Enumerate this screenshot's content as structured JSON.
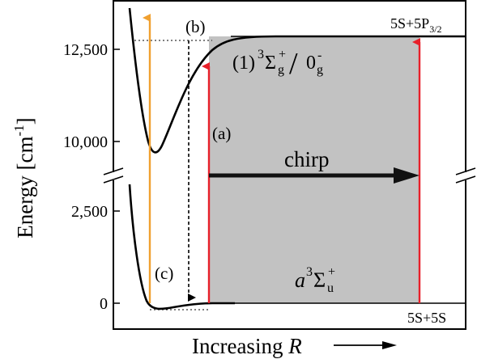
{
  "diagram": {
    "ylabel_main": "Energy [cm",
    "ylabel_sup": "-1",
    "ylabel_end": "]",
    "xlabel_text": "Increasing ",
    "xlabel_var": "R",
    "ticks": [
      "12,500",
      "10,000",
      "2,500",
      "0"
    ],
    "labels": {
      "a": "(a)",
      "b": "(b)",
      "c": "(c)",
      "chirp": "chirp"
    },
    "asymptote_top": {
      "base": "5S+5P",
      "sub": "3/2"
    },
    "asymptote_bottom": "5S+5S",
    "upper_state": {
      "prefix": "(1)",
      "sup": "3",
      "sigma": "Σ",
      "sub": "g",
      "sup2": "+",
      "slash": "/",
      "omega": "0",
      "omega_sub": "g",
      "omega_sup": "-"
    },
    "lower_state": {
      "letter": "a",
      "sup": "3",
      "sigma": "Σ",
      "sub": "u",
      "sup2": "+"
    },
    "colors": {
      "shade": "#c2c2c2",
      "orange_arrow": "#f0a030",
      "red_arrow": "#e8202a",
      "curve": "#000000",
      "chirp_arrow": "#111111"
    }
  }
}
